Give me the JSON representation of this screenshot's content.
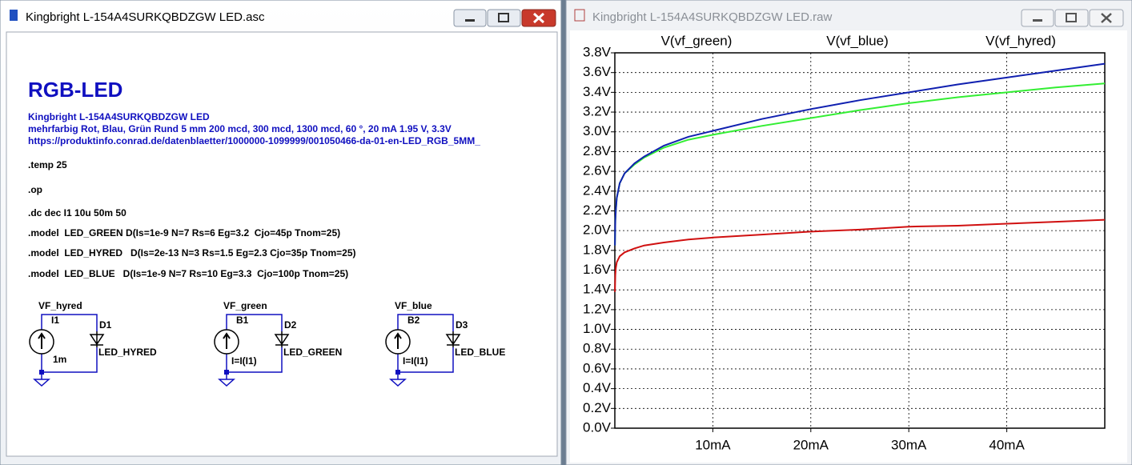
{
  "left_window": {
    "title": "Kingbright L-154A4SURKQBDZGW LED.asc",
    "heading": "RGB-LED",
    "description": [
      "Kingbright L-154A4SURKQBDZGW LED",
      "mehrfarbig Rot, Blau, Grün Rund 5 mm 200 mcd, 300 mcd, 1300 mcd, 60 °, 20 mA 1.95 V, 3.3V",
      "https://produktinfo.conrad.de/datenblaetter/1000000-1099999/001050466-da-01-en-LED_RGB_5MM_"
    ],
    "directives": [
      ".temp 25",
      ".op",
      ".dc dec I1 10u 50m 50",
      ".model  LED_GREEN D(Is=1e-9 N=7 Rs=6 Eg=3.2  Cjo=45p Tnom=25)",
      ".model  LED_HYRED   D(Is=2e-13 N=3 Rs=1.5 Eg=2.3 Cjo=35p Tnom=25)",
      ".model  LED_BLUE   D(Is=1e-9 N=7 Rs=10 Eg=3.3  Cjo=100p Tnom=25)"
    ],
    "components": [
      {
        "net": "VF_hyred",
        "source": "I1",
        "diode": "D1",
        "model": "LED_HYRED",
        "value": "1m"
      },
      {
        "net": "VF_green",
        "source": "B1",
        "diode": "D2",
        "model": "LED_GREEN",
        "value": "I=I(I1)"
      },
      {
        "net": "VF_blue",
        "source": "B2",
        "diode": "D3",
        "model": "LED_BLUE",
        "value": "I=I(I1)"
      }
    ]
  },
  "right_window": {
    "title": "Kingbright L-154A4SURKQBDZGW LED.raw"
  },
  "chart_data": {
    "type": "line",
    "x": [
      0.01,
      0.05,
      0.1,
      0.2,
      0.5,
      1,
      2,
      3,
      5,
      7.5,
      10,
      15,
      20,
      25,
      30,
      35,
      40,
      45,
      50
    ],
    "xlim": [
      0,
      50
    ],
    "xticks": [
      {
        "value": 10,
        "label": "10mA"
      },
      {
        "value": 20,
        "label": "20mA"
      },
      {
        "value": 30,
        "label": "30mA"
      },
      {
        "value": 40,
        "label": "40mA"
      }
    ],
    "ylim": [
      0,
      3.8
    ],
    "yticks": [
      {
        "value": 0,
        "label": "0.0V"
      },
      {
        "value": 0.2,
        "label": "0.2V"
      },
      {
        "value": 0.4,
        "label": "0.4V"
      },
      {
        "value": 0.6,
        "label": "0.6V"
      },
      {
        "value": 0.8,
        "label": "0.8V"
      },
      {
        "value": 1.0,
        "label": "1.0V"
      },
      {
        "value": 1.2,
        "label": "1.2V"
      },
      {
        "value": 1.4,
        "label": "1.4V"
      },
      {
        "value": 1.6,
        "label": "1.6V"
      },
      {
        "value": 1.8,
        "label": "1.8V"
      },
      {
        "value": 2.0,
        "label": "2.0V"
      },
      {
        "value": 2.2,
        "label": "2.2V"
      },
      {
        "value": 2.4,
        "label": "2.4V"
      },
      {
        "value": 2.6,
        "label": "2.6V"
      },
      {
        "value": 2.8,
        "label": "2.8V"
      },
      {
        "value": 3.0,
        "label": "3.0V"
      },
      {
        "value": 3.2,
        "label": "3.2V"
      },
      {
        "value": 3.4,
        "label": "3.4V"
      },
      {
        "value": 3.6,
        "label": "3.6V"
      },
      {
        "value": 3.8,
        "label": "3.8V"
      }
    ],
    "grid": true,
    "series": [
      {
        "name": "V(vf_green)",
        "color": "#33ee33",
        "values": [
          1.85,
          2.1,
          2.2,
          2.33,
          2.48,
          2.58,
          2.67,
          2.74,
          2.84,
          2.92,
          2.97,
          3.06,
          3.14,
          3.22,
          3.29,
          3.35,
          3.4,
          3.45,
          3.49
        ]
      },
      {
        "name": "V(vf_blue)",
        "color": "#1020b0",
        "values": [
          1.85,
          2.1,
          2.2,
          2.33,
          2.48,
          2.58,
          2.68,
          2.75,
          2.86,
          2.95,
          3.01,
          3.13,
          3.23,
          3.32,
          3.4,
          3.48,
          3.55,
          3.62,
          3.69
        ]
      },
      {
        "name": "V(vf_hyred)",
        "color": "#d01010",
        "values": [
          1.38,
          1.55,
          1.62,
          1.68,
          1.74,
          1.78,
          1.82,
          1.85,
          1.88,
          1.91,
          1.93,
          1.96,
          1.99,
          2.01,
          2.04,
          2.05,
          2.07,
          2.09,
          2.11
        ]
      }
    ]
  }
}
